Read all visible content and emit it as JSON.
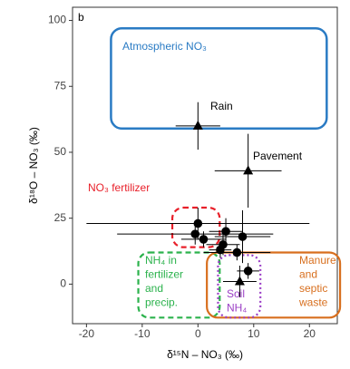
{
  "chart_data": {
    "type": "scatter",
    "panel_label": "b",
    "xlabel": "δ¹⁵N – NO₃ (‰)",
    "ylabel": "δ¹⁸O – NO₃ (‰)",
    "xlim": [
      -22.5,
      25
    ],
    "ylim": [
      -15,
      105
    ],
    "xticks": [
      -20,
      -10,
      0,
      10,
      20
    ],
    "yticks": [
      0,
      25,
      50,
      75,
      100
    ],
    "color": "#000000",
    "x": [
      0,
      9,
      0,
      -0.5,
      1,
      5,
      4.5,
      4,
      8,
      7,
      9,
      7.5
    ],
    "y": [
      60,
      43,
      23,
      19,
      17,
      20,
      15,
      13,
      18,
      12,
      5,
      1
    ],
    "xerr": [
      4,
      6,
      20,
      14,
      4,
      3,
      3,
      2,
      5,
      6,
      2,
      3
    ],
    "yerr": [
      9,
      14,
      6,
      4,
      3,
      5,
      4,
      3,
      10,
      3,
      3,
      6
    ],
    "marker": [
      "triangle",
      "triangle",
      "circle",
      "circle",
      "circle",
      "circle",
      "circle",
      "circle",
      "circle",
      "circle",
      "circle",
      "triangle"
    ],
    "regions": [
      {
        "label": "Atmospheric NO₃",
        "color": "#2a7bc4",
        "style": "solid",
        "xrange": [
          -15.6,
          23.1
        ],
        "yrange": [
          59,
          97
        ]
      },
      {
        "label": "NO₃ fertilizer",
        "color": "#e8202a",
        "style": "dashed",
        "xrange": [
          -4.6,
          3.9
        ],
        "yrange": [
          14,
          29
        ]
      },
      {
        "label": "NH₄ in fertilizer and precip.",
        "color": "#2bb24c",
        "style": "dashed",
        "xrange": [
          -10.7,
          3.9
        ],
        "yrange": [
          -12.7,
          12
        ]
      },
      {
        "label": "Manure and septic waste",
        "color": "#d86f1e",
        "style": "solid",
        "xrange": [
          1.6,
          25.5
        ],
        "yrange": [
          -12.7,
          12
        ]
      },
      {
        "label": "Soil NH₄",
        "color": "#9b3fc6",
        "style": "dotted",
        "xrange": [
          3.6,
          11.2
        ],
        "yrange": [
          -12.7,
          11
        ]
      }
    ],
    "annotations": [
      "Rain",
      "Pavement"
    ]
  }
}
